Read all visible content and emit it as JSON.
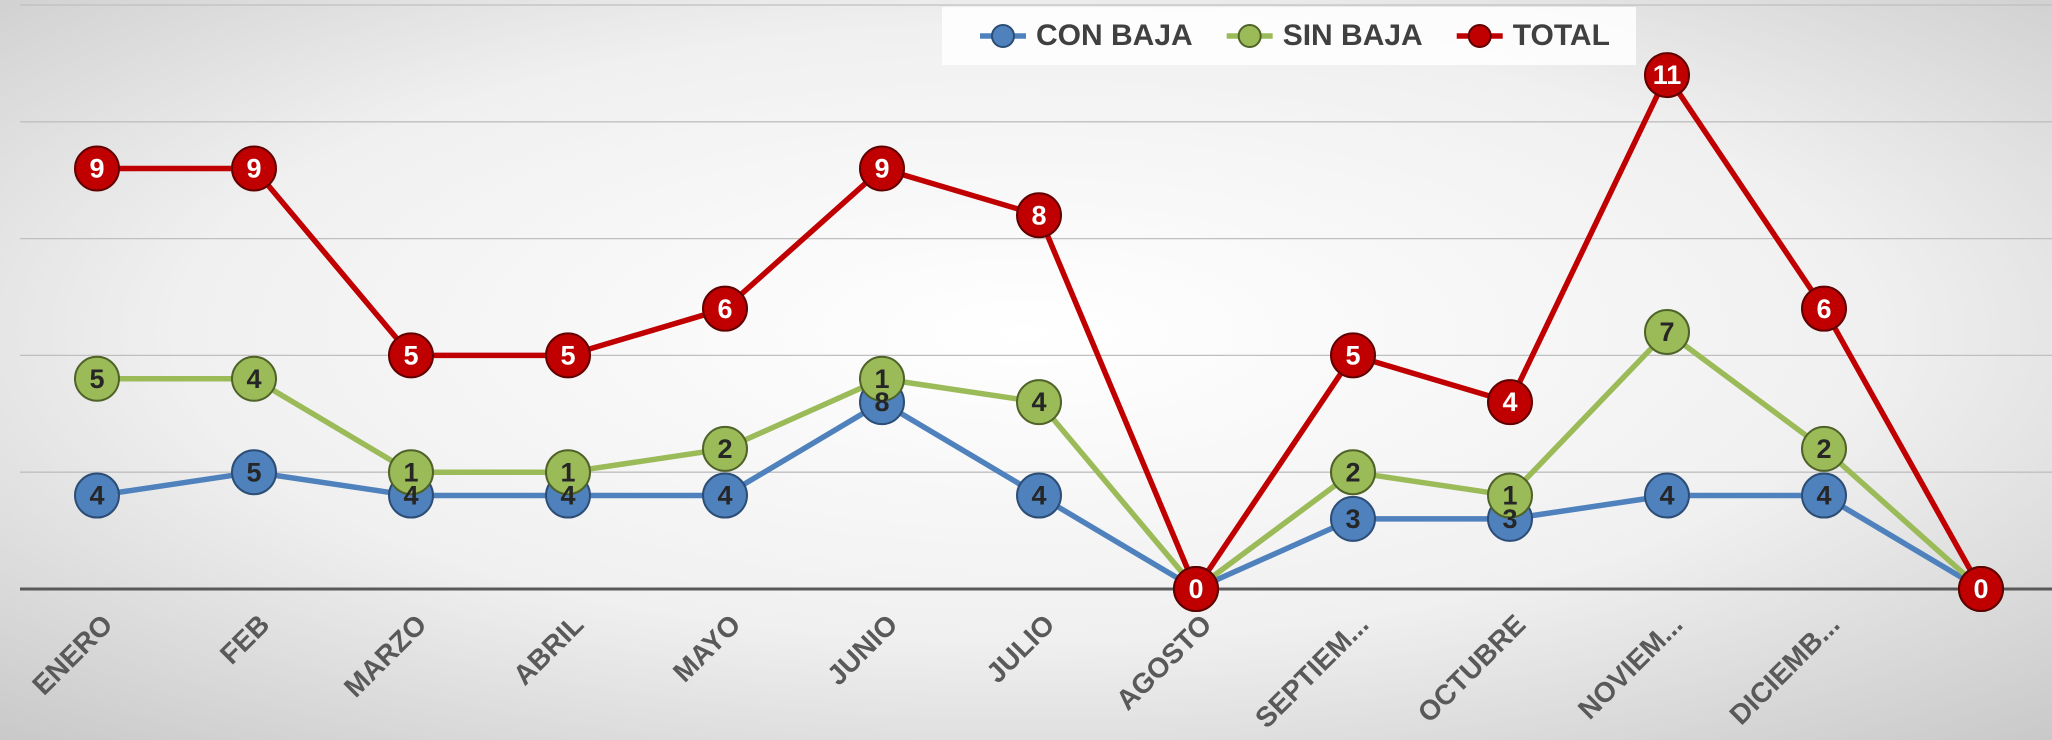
{
  "chart_data": {
    "type": "line",
    "categories": [
      "ENERO",
      "FEB",
      "MARZO",
      "ABRIL",
      "MAYO",
      "JUNIO",
      "JULIO",
      "AGOSTO",
      "SEPTIEM...",
      "OCTUBRE",
      "NOVIEM...",
      "DICIEMB...",
      null
    ],
    "series": [
      {
        "name": "CON BAJA",
        "color": "#4f81bd",
        "axis": "y2",
        "values": [
          4,
          5,
          4,
          4,
          4,
          8,
          4,
          0,
          3,
          3,
          4,
          4,
          0
        ]
      },
      {
        "name": "SIN BAJA",
        "color": "#9bbb59",
        "axis": "y2",
        "values": [
          5,
          4,
          1,
          1,
          2,
          1,
          4,
          0,
          2,
          1,
          7,
          2,
          0
        ]
      },
      {
        "name": "TOTAL",
        "color": "#c00000",
        "values": [
          9,
          9,
          5,
          5,
          6,
          9,
          8,
          0,
          5,
          4,
          11,
          6,
          0
        ]
      }
    ],
    "stacked": true,
    "ylim": [
      0,
      12.5
    ],
    "yticks": [
      0,
      2.5,
      5,
      7.5,
      10,
      12.5
    ],
    "y2lim": [
      0,
      25
    ],
    "grid": true,
    "legend": "top"
  }
}
